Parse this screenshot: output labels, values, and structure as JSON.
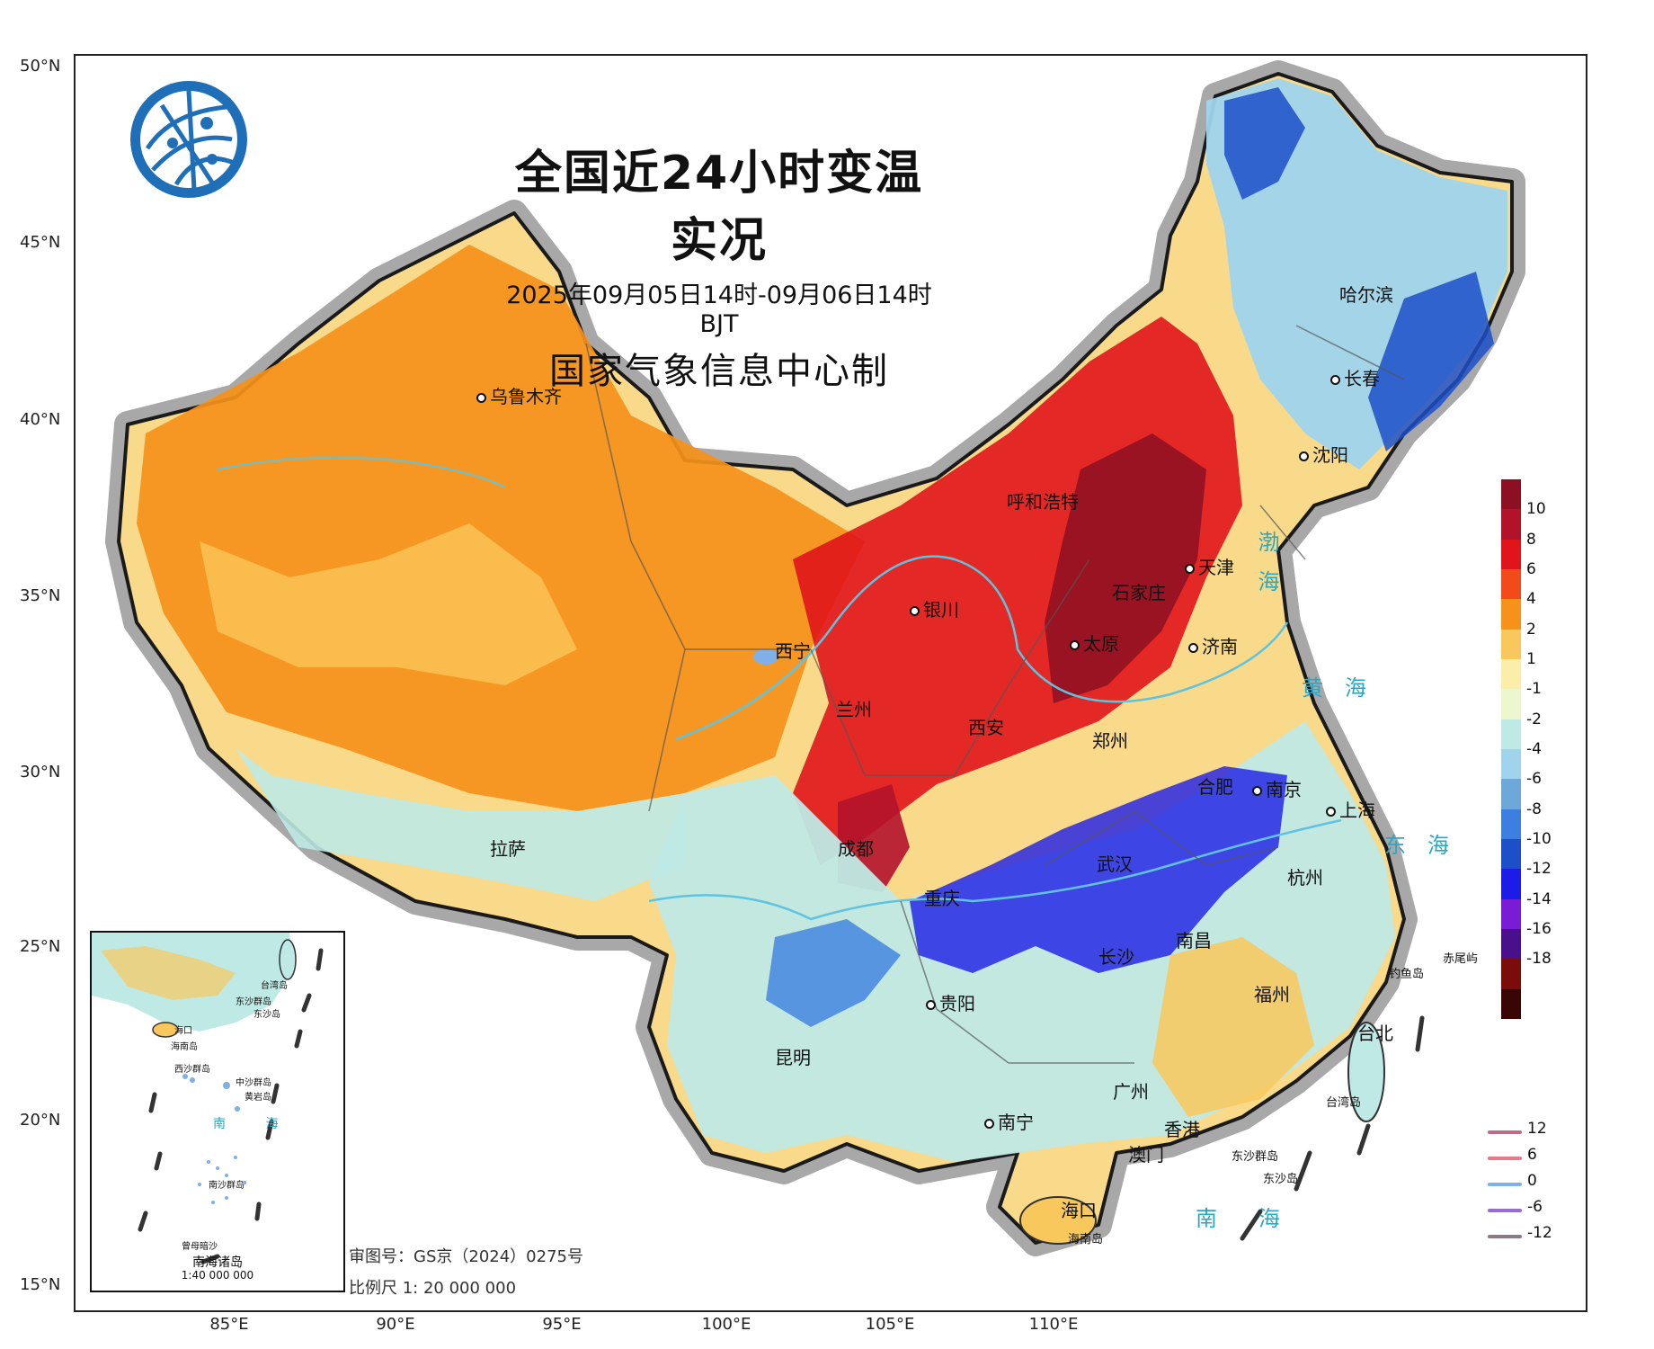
{
  "title": {
    "main": "全国近24小时变温实况",
    "subtitle": "2025年09月05日14时-09月06日14时 BJT",
    "producer": "国家气象信息中心制"
  },
  "axes": {
    "lat_labels": [
      "50°N",
      "45°N",
      "40°N",
      "35°N",
      "30°N",
      "25°N",
      "20°N",
      "15°N"
    ],
    "lon_labels": [
      "85°E",
      "90°E",
      "95°E",
      "100°E",
      "105°E",
      "110°E"
    ]
  },
  "cities": [
    {
      "id": "urumqi",
      "name": "乌鲁木齐"
    },
    {
      "id": "harbin",
      "name": "哈尔滨"
    },
    {
      "id": "changchun",
      "name": "长春"
    },
    {
      "id": "shenyang",
      "name": "沈阳"
    },
    {
      "id": "hohhot",
      "name": "呼和浩特"
    },
    {
      "id": "tianjin",
      "name": "天津"
    },
    {
      "id": "shijiazhuang",
      "name": "石家庄"
    },
    {
      "id": "yinchuan",
      "name": "银川"
    },
    {
      "id": "taiyuan",
      "name": "太原"
    },
    {
      "id": "jinan",
      "name": "济南"
    },
    {
      "id": "xining",
      "name": "西宁"
    },
    {
      "id": "lanzhou",
      "name": "兰州"
    },
    {
      "id": "xian",
      "name": "西安"
    },
    {
      "id": "zhengzhou",
      "name": "郑州"
    },
    {
      "id": "hefei",
      "name": "合肥"
    },
    {
      "id": "nanjing",
      "name": "南京"
    },
    {
      "id": "shanghai",
      "name": "上海"
    },
    {
      "id": "lhasa",
      "name": "拉萨"
    },
    {
      "id": "chengdu",
      "name": "成都"
    },
    {
      "id": "wuhan",
      "name": "武汉"
    },
    {
      "id": "hangzhou",
      "name": "杭州"
    },
    {
      "id": "chongqing",
      "name": "重庆"
    },
    {
      "id": "nanchang",
      "name": "南昌"
    },
    {
      "id": "changsha",
      "name": "长沙"
    },
    {
      "id": "fuzhou",
      "name": "福州"
    },
    {
      "id": "guiyang",
      "name": "贵阳"
    },
    {
      "id": "taipei",
      "name": "台北"
    },
    {
      "id": "kunming",
      "name": "昆明"
    },
    {
      "id": "guangzhou",
      "name": "广州"
    },
    {
      "id": "nanning",
      "name": "南宁"
    },
    {
      "id": "hongkong",
      "name": "香港"
    },
    {
      "id": "macau",
      "name": "澳门"
    },
    {
      "id": "haikou",
      "name": "海口"
    }
  ],
  "water_labels": [
    {
      "id": "bohai",
      "text": "渤海"
    },
    {
      "id": "huanghai",
      "text": "黄海"
    },
    {
      "id": "donghai",
      "text": "东海"
    },
    {
      "id": "nanhai",
      "text": "南海"
    }
  ],
  "small_labels": {
    "diaoyu": "钓鱼岛",
    "chiwei": "赤尾屿",
    "taiwan": "台湾岛",
    "hainan": "海南岛",
    "dongsha_islands": "东沙群岛",
    "dongsha": "东沙岛"
  },
  "meta": {
    "map_review_no": "审图号：GS京（2024）0275号",
    "scale": "比例尺 1: 20 000 000"
  },
  "inset": {
    "caption": "南海诸岛",
    "scale": "1:40 000 000",
    "sea_label": "南 海",
    "labels": [
      "台湾岛",
      "东沙群岛",
      "东沙岛",
      "海口",
      "海南岛",
      "西沙群岛",
      "中沙群岛",
      "黄岩岛",
      "南沙群岛",
      "曾母暗沙"
    ]
  },
  "color_legend": {
    "unit_values": [
      "10",
      "8",
      "6",
      "4",
      "2",
      "1",
      "-1",
      "-2",
      "-4",
      "-6",
      "-8",
      "-10",
      "-12",
      "-14",
      "-16",
      "-18"
    ],
    "colors": [
      "#8c0f22",
      "#b3122b",
      "#e0141b",
      "#f24a1a",
      "#f6911a",
      "#f9c85c",
      "#fbeea8",
      "#eef6cf",
      "#bfe9e4",
      "#9fd4ec",
      "#6ea8d8",
      "#3c7fe0",
      "#1c4fc8",
      "#1d1ce6",
      "#7a1bd6",
      "#4a0f8c",
      "#7a0c0c",
      "#3a0505"
    ]
  },
  "line_legend": [
    {
      "value": "12",
      "color": "#c06a88"
    },
    {
      "value": "6",
      "color": "#e8788c"
    },
    {
      "value": "0",
      "color": "#7fb0e6"
    },
    {
      "value": "-6",
      "color": "#9b6ad8"
    },
    {
      "value": "-12",
      "color": "#8a7a86"
    }
  ]
}
